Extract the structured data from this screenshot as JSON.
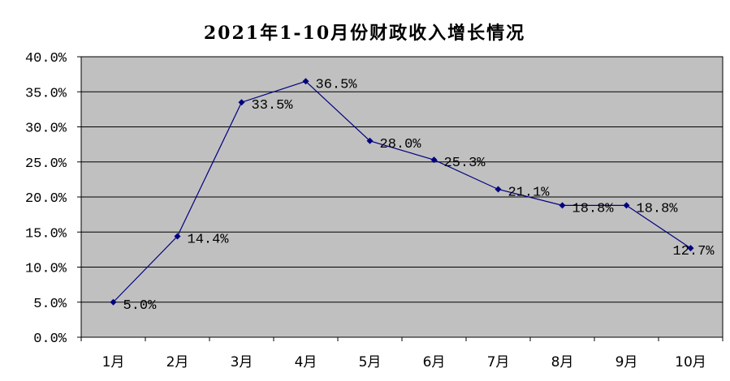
{
  "chart_data": {
    "type": "line",
    "title": "2021年1-10月份财政收入增长情况",
    "categories": [
      "1月",
      "2月",
      "3月",
      "4月",
      "5月",
      "6月",
      "7月",
      "8月",
      "9月",
      "10月"
    ],
    "series": [
      {
        "values": [
          5.0,
          14.4,
          33.5,
          36.5,
          28.0,
          25.3,
          21.1,
          18.8,
          18.8,
          12.7
        ],
        "labels": [
          "5.0%",
          "14.4%",
          "33.5%",
          "36.5%",
          "28.0%",
          "25.3%",
          "21.1%",
          "18.8%",
          "18.8%",
          "12.7%"
        ]
      }
    ],
    "ylim": [
      0,
      40
    ],
    "yticks": [
      "0.0%",
      "5.0%",
      "10.0%",
      "15.0%",
      "20.0%",
      "25.0%",
      "30.0%",
      "35.0%",
      "40.0%"
    ],
    "grid": true,
    "colors": {
      "plot_background": "#c0c0c0",
      "line": "#000080",
      "gridline": "#000000"
    }
  }
}
